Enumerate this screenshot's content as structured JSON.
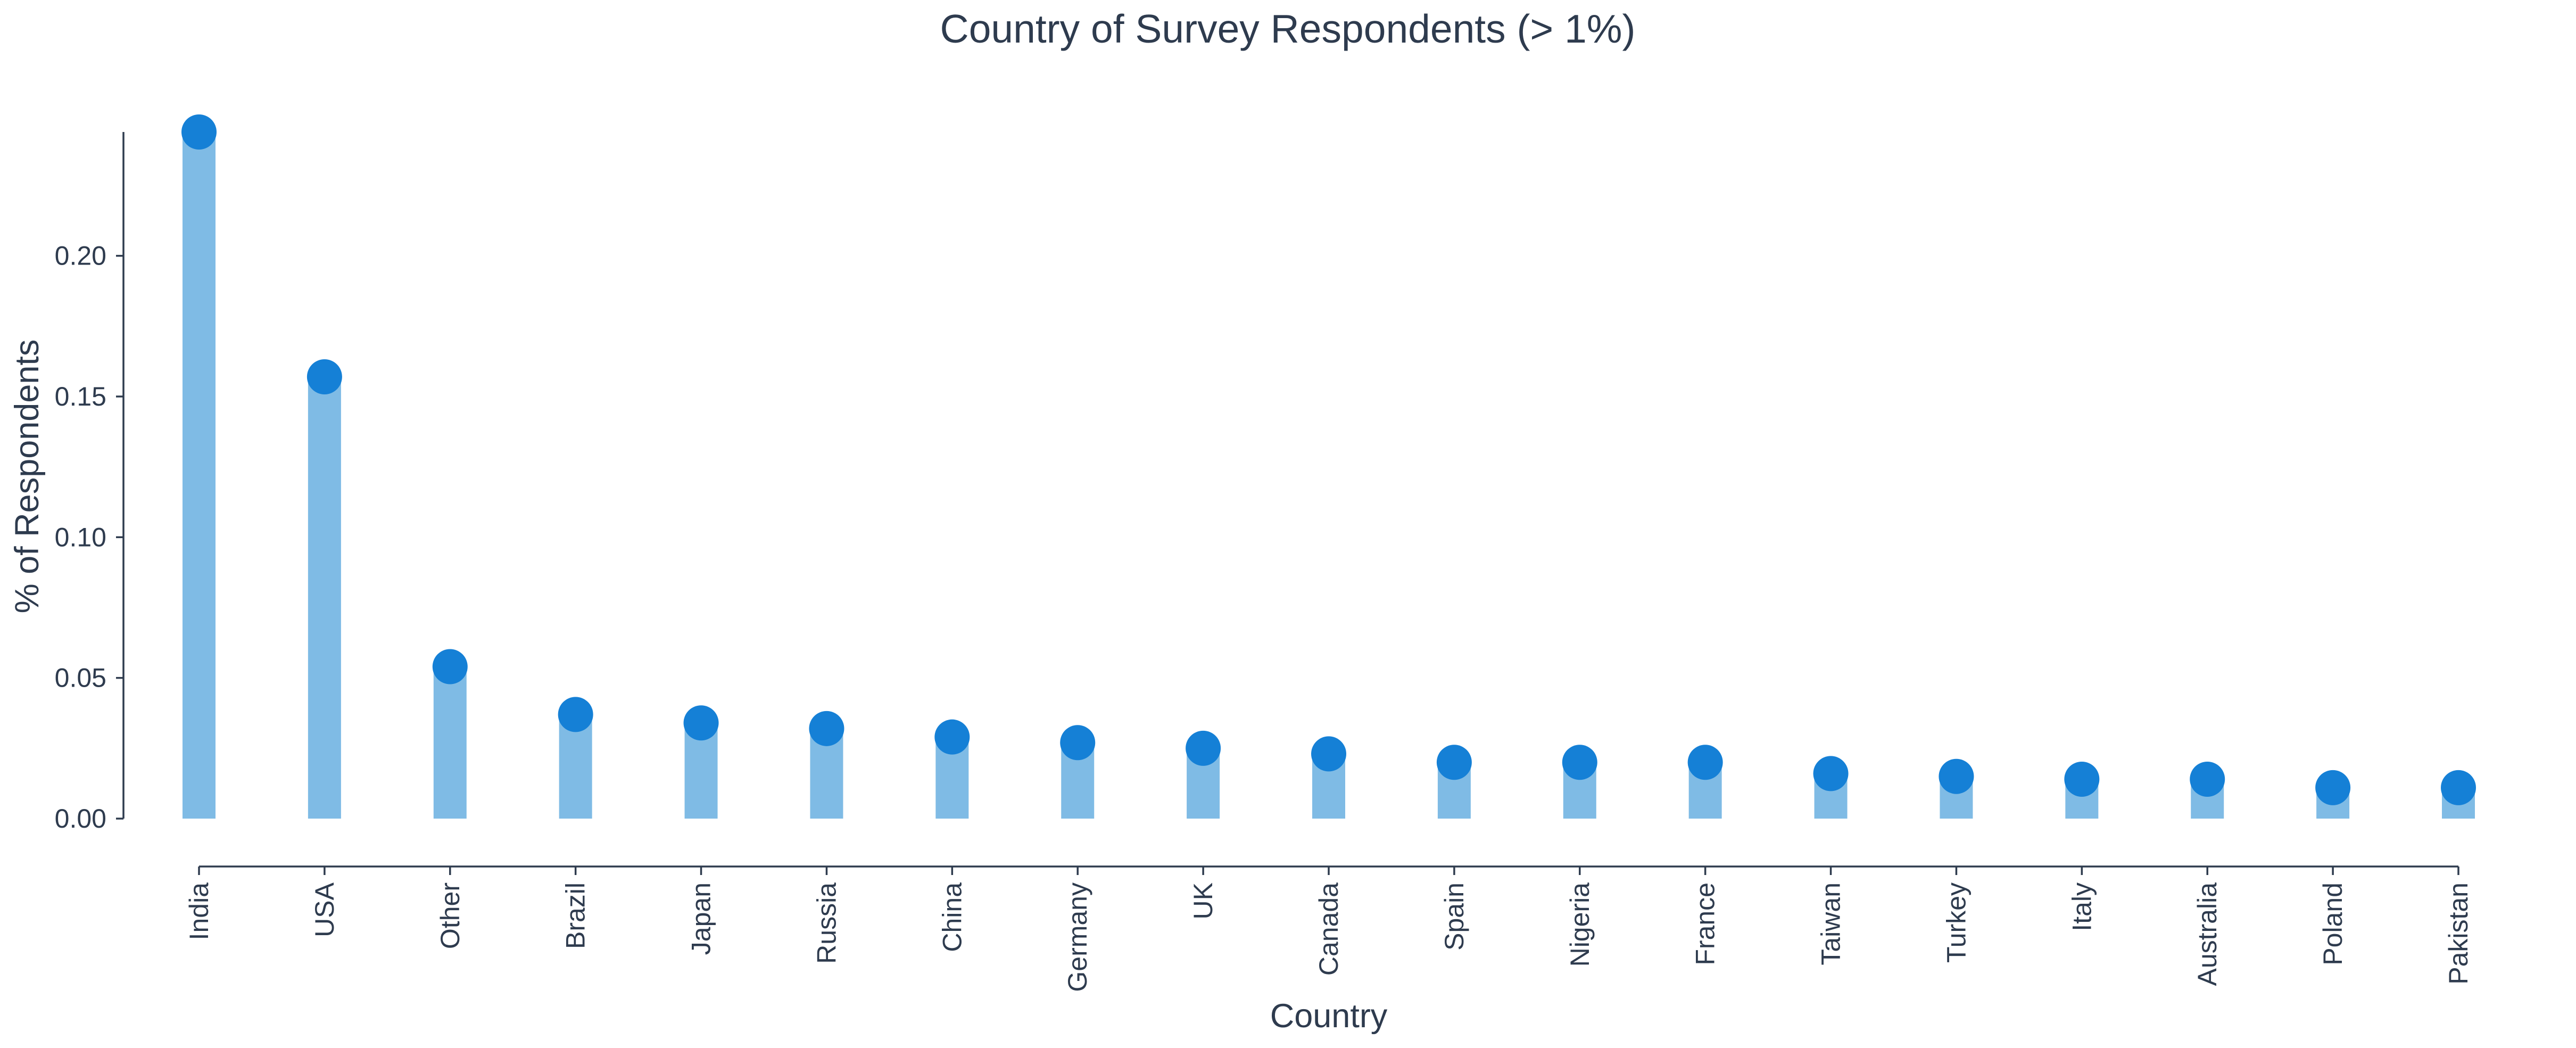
{
  "chart_data": {
    "type": "bar",
    "title": "Country of Survey Respondents (> 1%)",
    "xlabel": "Country",
    "ylabel": "% of Respondents",
    "categories": [
      "India",
      "USA",
      "Other",
      "Brazil",
      "Japan",
      "Russia",
      "China",
      "Germany",
      "UK",
      "Canada",
      "Spain",
      "Nigeria",
      "France",
      "Taiwan",
      "Turkey",
      "Italy",
      "Australia",
      "Poland",
      "Pakistan"
    ],
    "values": [
      0.244,
      0.157,
      0.054,
      0.037,
      0.034,
      0.032,
      0.029,
      0.027,
      0.025,
      0.023,
      0.02,
      0.02,
      0.02,
      0.016,
      0.015,
      0.014,
      0.014,
      0.011,
      0.011
    ],
    "yticks": [
      "0.00",
      "0.05",
      "0.10",
      "0.15",
      "0.20"
    ],
    "ylim": [
      0,
      0.244
    ],
    "grid": false,
    "legend": "none",
    "colors": {
      "bar": "#7fbbe5",
      "marker": "#1580d6",
      "axis": "#2e3b4e"
    }
  }
}
